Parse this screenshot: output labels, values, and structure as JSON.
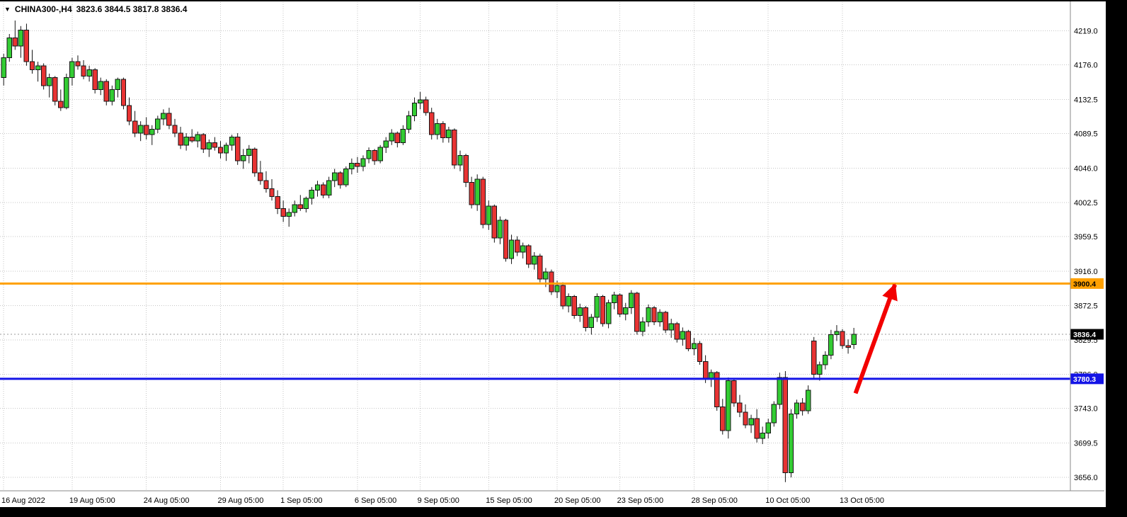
{
  "header": {
    "dropdown_icon": "▼",
    "symbol_label": "CHINA300-,H4",
    "ohlc_text": "3823.6 3844.5 3817.8 3836.4",
    "open": "3823.6",
    "high": "3844.5",
    "low": "3817.8",
    "close": "3836.4"
  },
  "colors": {
    "bull": "#33CC33",
    "bear": "#E83333",
    "wick": "#151515",
    "grid": "#C6C6C6",
    "background": "#FFFFFF"
  },
  "chart_data": {
    "type": "candlestick",
    "title": "CHINA300-,H4",
    "symbol": "CHINA300-",
    "timeframe": "H4",
    "grid": "dotted",
    "y_axis": {
      "price_top": 4240,
      "price_bottom": 3640,
      "ticks": [
        4219.0,
        4176.0,
        4132.5,
        4089.5,
        4046.0,
        4002.5,
        3959.5,
        3916.0,
        3872.5,
        3829.5,
        3786.0,
        3743.0,
        3699.5,
        3656.0
      ]
    },
    "x_axis_labels": [
      {
        "label": "16 Aug 2022",
        "index": 0
      },
      {
        "label": "19 Aug 05:00",
        "index": 12
      },
      {
        "label": "24 Aug 05:00",
        "index": 25
      },
      {
        "label": "29 Aug 05:00",
        "index": 38
      },
      {
        "label": "1 Sep 05:00",
        "index": 49
      },
      {
        "label": "6 Sep 05:00",
        "index": 62
      },
      {
        "label": "9 Sep 05:00",
        "index": 73
      },
      {
        "label": "15 Sep 05:00",
        "index": 85
      },
      {
        "label": "20 Sep 05:00",
        "index": 97
      },
      {
        "label": "23 Sep 05:00",
        "index": 108
      },
      {
        "label": "28 Sep 05:00",
        "index": 121
      },
      {
        "label": "10 Oct 05:00",
        "index": 134
      },
      {
        "label": "13 Oct 05:00",
        "index": 147
      }
    ],
    "candles": [
      [
        4160,
        4190,
        4150,
        4185
      ],
      [
        4185,
        4215,
        4180,
        4210
      ],
      [
        4210,
        4232,
        4195,
        4200
      ],
      [
        4200,
        4225,
        4185,
        4220
      ],
      [
        4220,
        4228,
        4175,
        4180
      ],
      [
        4180,
        4195,
        4165,
        4170
      ],
      [
        4170,
        4180,
        4155,
        4175
      ],
      [
        4175,
        4178,
        4145,
        4150
      ],
      [
        4150,
        4165,
        4135,
        4160
      ],
      [
        4160,
        4162,
        4125,
        4130
      ],
      [
        4130,
        4145,
        4118,
        4122
      ],
      [
        4122,
        4165,
        4120,
        4160
      ],
      [
        4160,
        4185,
        4150,
        4180
      ],
      [
        4180,
        4188,
        4170,
        4175
      ],
      [
        4175,
        4182,
        4158,
        4162
      ],
      [
        4162,
        4175,
        4155,
        4170
      ],
      [
        4170,
        4172,
        4140,
        4145
      ],
      [
        4145,
        4160,
        4138,
        4155
      ],
      [
        4155,
        4158,
        4125,
        4130
      ],
      [
        4130,
        4150,
        4125,
        4145
      ],
      [
        4145,
        4160,
        4135,
        4158
      ],
      [
        4158,
        4160,
        4120,
        4125
      ],
      [
        4125,
        4135,
        4100,
        4105
      ],
      [
        4105,
        4118,
        4085,
        4090
      ],
      [
        4090,
        4105,
        4080,
        4100
      ],
      [
        4100,
        4110,
        4082,
        4088
      ],
      [
        4088,
        4100,
        4075,
        4095
      ],
      [
        4095,
        4112,
        4090,
        4108
      ],
      [
        4108,
        4120,
        4100,
        4115
      ],
      [
        4115,
        4122,
        4095,
        4100
      ],
      [
        4100,
        4108,
        4085,
        4090
      ],
      [
        4090,
        4098,
        4070,
        4075
      ],
      [
        4075,
        4090,
        4068,
        4085
      ],
      [
        4085,
        4095,
        4078,
        4080
      ],
      [
        4080,
        4092,
        4072,
        4088
      ],
      [
        4088,
        4090,
        4065,
        4070
      ],
      [
        4070,
        4082,
        4060,
        4078
      ],
      [
        4078,
        4085,
        4068,
        4072
      ],
      [
        4072,
        4080,
        4058,
        4065
      ],
      [
        4065,
        4078,
        4055,
        4075
      ],
      [
        4075,
        4088,
        4068,
        4085
      ],
      [
        4085,
        4090,
        4050,
        4055
      ],
      [
        4055,
        4070,
        4045,
        4062
      ],
      [
        4062,
        4075,
        4052,
        4070
      ],
      [
        4070,
        4072,
        4035,
        4040
      ],
      [
        4040,
        4055,
        4025,
        4030
      ],
      [
        4030,
        4042,
        4015,
        4020
      ],
      [
        4020,
        4032,
        4005,
        4010
      ],
      [
        4010,
        4018,
        3988,
        3995
      ],
      [
        3995,
        4005,
        3978,
        3985
      ],
      [
        3985,
        3995,
        3972,
        3990
      ],
      [
        3990,
        4005,
        3985,
        4000
      ],
      [
        4000,
        4012,
        3992,
        3995
      ],
      [
        3995,
        4010,
        3990,
        4008
      ],
      [
        4008,
        4022,
        4000,
        4018
      ],
      [
        4018,
        4030,
        4010,
        4025
      ],
      [
        4025,
        4028,
        4008,
        4012
      ],
      [
        4012,
        4035,
        4008,
        4030
      ],
      [
        4030,
        4045,
        4022,
        4040
      ],
      [
        4040,
        4042,
        4020,
        4025
      ],
      [
        4025,
        4048,
        4022,
        4045
      ],
      [
        4045,
        4058,
        4038,
        4052
      ],
      [
        4052,
        4060,
        4040,
        4048
      ],
      [
        4048,
        4062,
        4042,
        4058
      ],
      [
        4058,
        4072,
        4052,
        4068
      ],
      [
        4068,
        4070,
        4050,
        4055
      ],
      [
        4055,
        4075,
        4052,
        4072
      ],
      [
        4072,
        4085,
        4065,
        4080
      ],
      [
        4080,
        4095,
        4075,
        4090
      ],
      [
        4090,
        4092,
        4072,
        4078
      ],
      [
        4078,
        4100,
        4075,
        4095
      ],
      [
        4095,
        4118,
        4090,
        4112
      ],
      [
        4112,
        4135,
        4105,
        4128
      ],
      [
        4128,
        4142,
        4120,
        4132
      ],
      [
        4132,
        4136,
        4112,
        4116
      ],
      [
        4116,
        4122,
        4082,
        4088
      ],
      [
        4088,
        4108,
        4082,
        4102
      ],
      [
        4102,
        4105,
        4078,
        4084
      ],
      [
        4084,
        4098,
        4078,
        4094
      ],
      [
        4094,
        4096,
        4045,
        4050
      ],
      [
        4050,
        4068,
        4042,
        4062
      ],
      [
        4062,
        4064,
        4022,
        4028
      ],
      [
        4028,
        4035,
        3995,
        4000
      ],
      [
        4000,
        4038,
        3992,
        4032
      ],
      [
        4032,
        4035,
        3970,
        3975
      ],
      [
        3975,
        4005,
        3968,
        3998
      ],
      [
        3998,
        4000,
        3952,
        3958
      ],
      [
        3958,
        3985,
        3950,
        3980
      ],
      [
        3980,
        3982,
        3928,
        3932
      ],
      [
        3932,
        3962,
        3925,
        3955
      ],
      [
        3955,
        3960,
        3935,
        3940
      ],
      [
        3940,
        3952,
        3932,
        3948
      ],
      [
        3948,
        3950,
        3920,
        3925
      ],
      [
        3925,
        3940,
        3918,
        3935
      ],
      [
        3935,
        3938,
        3902,
        3906
      ],
      [
        3906,
        3920,
        3896,
        3915
      ],
      [
        3915,
        3918,
        3886,
        3890
      ],
      [
        3890,
        3904,
        3882,
        3898
      ],
      [
        3898,
        3902,
        3868,
        3872
      ],
      [
        3872,
        3888,
        3864,
        3884
      ],
      [
        3884,
        3886,
        3856,
        3860
      ],
      [
        3860,
        3875,
        3852,
        3870
      ],
      [
        3870,
        3872,
        3840,
        3845
      ],
      [
        3845,
        3862,
        3836,
        3858
      ],
      [
        3858,
        3888,
        3852,
        3884
      ],
      [
        3884,
        3886,
        3846,
        3850
      ],
      [
        3850,
        3880,
        3844,
        3876
      ],
      [
        3876,
        3890,
        3868,
        3886
      ],
      [
        3886,
        3888,
        3858,
        3862
      ],
      [
        3862,
        3876,
        3854,
        3870
      ],
      [
        3870,
        3892,
        3862,
        3888
      ],
      [
        3888,
        3890,
        3836,
        3840
      ],
      [
        3840,
        3858,
        3834,
        3852
      ],
      [
        3852,
        3874,
        3846,
        3870
      ],
      [
        3870,
        3872,
        3848,
        3852
      ],
      [
        3852,
        3868,
        3846,
        3864
      ],
      [
        3864,
        3866,
        3838,
        3842
      ],
      [
        3842,
        3856,
        3832,
        3850
      ],
      [
        3850,
        3852,
        3826,
        3830
      ],
      [
        3830,
        3845,
        3822,
        3840
      ],
      [
        3840,
        3842,
        3815,
        3818
      ],
      [
        3818,
        3832,
        3810,
        3825
      ],
      [
        3825,
        3828,
        3798,
        3802
      ],
      [
        3802,
        3810,
        3775,
        3780
      ],
      [
        3780,
        3792,
        3770,
        3788
      ],
      [
        3788,
        3790,
        3740,
        3745
      ],
      [
        3745,
        3755,
        3710,
        3715
      ],
      [
        3715,
        3782,
        3705,
        3778
      ],
      [
        3778,
        3780,
        3745,
        3750
      ],
      [
        3750,
        3760,
        3732,
        3738
      ],
      [
        3738,
        3748,
        3718,
        3722
      ],
      [
        3722,
        3735,
        3712,
        3730
      ],
      [
        3730,
        3742,
        3700,
        3705
      ],
      [
        3705,
        3720,
        3698,
        3712
      ],
      [
        3712,
        3730,
        3705,
        3725
      ],
      [
        3725,
        3752,
        3720,
        3748
      ],
      [
        3748,
        3788,
        3742,
        3782
      ],
      [
        3782,
        3790,
        3650,
        3662
      ],
      [
        3662,
        3742,
        3656,
        3736
      ],
      [
        3736,
        3754,
        3730,
        3750
      ],
      [
        3750,
        3756,
        3734,
        3740
      ],
      [
        3740,
        3772,
        3736,
        3766
      ],
      [
        3828,
        3833,
        3780,
        3786
      ],
      [
        3786,
        3802,
        3778,
        3798
      ],
      [
        3798,
        3815,
        3792,
        3810
      ],
      [
        3810,
        3842,
        3805,
        3836
      ],
      [
        3836,
        3848,
        3828,
        3840
      ],
      [
        3840,
        3843,
        3818,
        3822
      ],
      [
        3822,
        3830,
        3812,
        3820
      ],
      [
        3823.6,
        3844.5,
        3817.8,
        3836.4
      ]
    ],
    "levels": [
      {
        "name": "resistance-line",
        "price": 3900.4,
        "label": "3900.4",
        "color": "#FFA000",
        "label_text_color": "#000000",
        "width": 3
      },
      {
        "name": "support-line",
        "price": 3780.3,
        "label": "3780.3",
        "color": "#1414E6",
        "label_text_color": "#FFFFFF",
        "width": 3
      }
    ],
    "current_price": {
      "price": 3836.4,
      "label": "3836.4",
      "tag_bg": "#000000",
      "tag_text": "#FFFFFF"
    },
    "annotation_arrow": {
      "from_index": 149.3,
      "from_price": 3762,
      "to_index": 156.2,
      "to_price": 3899,
      "color": "#F20000",
      "width": 6
    }
  }
}
